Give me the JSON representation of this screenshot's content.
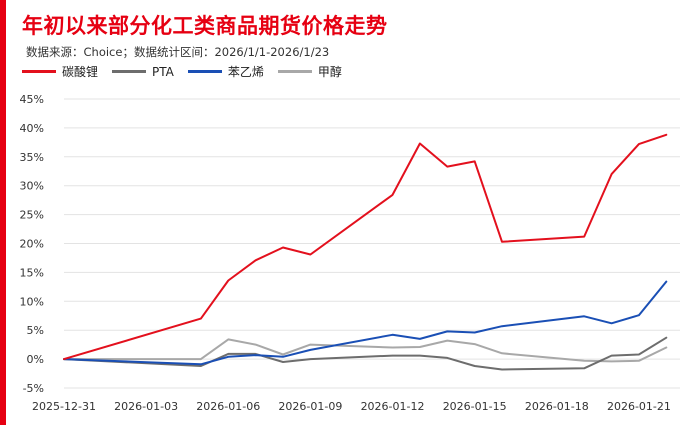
{
  "title": "年初以来部分化工类商品期货价格走势",
  "subtitle": "数据来源：Choice；数据统计区间：2026/1/1-2026/1/23",
  "colors": {
    "accent": "#e60012",
    "series": [
      "#e3101d",
      "#6d6d6d",
      "#1a4fb5",
      "#a8a8a8"
    ],
    "grid": "#e3e3e3"
  },
  "chart_data": {
    "type": "line",
    "title": "年初以来部分化工类商品期货价格走势",
    "xlabel": "",
    "ylabel": "",
    "ylim": [
      -5,
      45
    ],
    "yticks": [
      -5,
      0,
      5,
      10,
      15,
      20,
      25,
      30,
      35,
      40,
      45
    ],
    "ytick_labels": [
      "-5%",
      "0%",
      "5%",
      "10%",
      "15%",
      "20%",
      "25%",
      "30%",
      "35%",
      "40%",
      "45%"
    ],
    "xlim": [
      0,
      22.5
    ],
    "xticks": [
      0,
      3,
      6,
      9,
      12,
      15,
      18,
      21
    ],
    "xtick_labels": [
      "2025-12-31",
      "2026-01-03",
      "2026-01-06",
      "2026-01-09",
      "2026-01-12",
      "2026-01-15",
      "2026-01-18",
      "2026-01-21"
    ],
    "grid": true,
    "legend_position": "top-left",
    "series": [
      {
        "name": "碳酸锂",
        "x": [
          0,
          5,
          6,
          7,
          8,
          9,
          12,
          13,
          14,
          15,
          16,
          19,
          20,
          21,
          22
        ],
        "values": [
          0,
          7.0,
          13.6,
          17.1,
          19.3,
          18.1,
          28.4,
          37.3,
          33.3,
          34.2,
          20.3,
          21.2,
          32.0,
          37.2,
          38.8
        ]
      },
      {
        "name": "PTA",
        "x": [
          0,
          5,
          6,
          7,
          8,
          9,
          12,
          13,
          14,
          15,
          16,
          19,
          20,
          21,
          22
        ],
        "values": [
          0,
          -1.2,
          0.9,
          0.9,
          -0.5,
          0.0,
          0.6,
          0.6,
          0.2,
          -1.2,
          -1.8,
          -1.6,
          0.6,
          0.8,
          3.7
        ]
      },
      {
        "name": "苯乙烯",
        "x": [
          0,
          5,
          6,
          7,
          8,
          9,
          12,
          13,
          14,
          15,
          16,
          19,
          20,
          21,
          22
        ],
        "values": [
          0,
          -0.9,
          0.4,
          0.7,
          0.4,
          1.6,
          4.2,
          3.5,
          4.8,
          4.6,
          5.7,
          7.4,
          6.2,
          7.6,
          13.4
        ]
      },
      {
        "name": "甲醇",
        "x": [
          0,
          5,
          6,
          7,
          8,
          9,
          12,
          13,
          14,
          15,
          16,
          19,
          20,
          21,
          22
        ],
        "values": [
          0,
          0.0,
          3.4,
          2.5,
          0.8,
          2.5,
          2.0,
          2.1,
          3.2,
          2.6,
          1.0,
          -0.3,
          -0.4,
          -0.3,
          2.0
        ]
      }
    ]
  }
}
